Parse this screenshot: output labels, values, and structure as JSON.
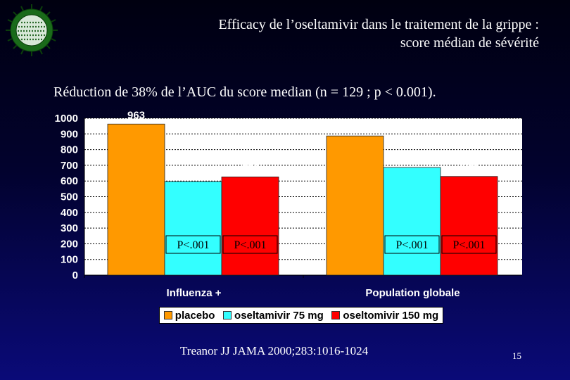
{
  "header": {
    "title_line1": "Efficacy de l’oseltamivir dans le traitement de la grippe :",
    "title_line2": "score médian de sévérité"
  },
  "subtitle": "Réduction de 38%  de l’AUC du score median (n = 129 ; p < 0.001).",
  "chart_data": {
    "type": "bar",
    "categories": [
      "Influenza +",
      "Population globale"
    ],
    "series": [
      {
        "name": "placebo",
        "values": [
          963,
          887
        ],
        "color": "#FF9900",
        "annotations": [
          "",
          ""
        ]
      },
      {
        "name": "oseltamivir 75 mg",
        "values": [
          597,
          686
        ],
        "color": "#33FFFF",
        "annotations": [
          "P<.001",
          "P<.001"
        ]
      },
      {
        "name": "oseltomivir 150 mg",
        "values": [
          626,
          629
        ],
        "color": "#FF0000",
        "annotations": [
          "P<.001",
          "P<.001"
        ]
      }
    ],
    "ylim": [
      0,
      1000
    ],
    "yticks": [
      "0",
      "100",
      "200",
      "300",
      "400",
      "500",
      "600",
      "700",
      "800",
      "900",
      "1000"
    ],
    "grid": true,
    "legend_position": "bottom",
    "plot_background": "#ffffff"
  },
  "citation": "Treanor JJ JAMA 2000;283:1016-1024",
  "page_number": "15"
}
